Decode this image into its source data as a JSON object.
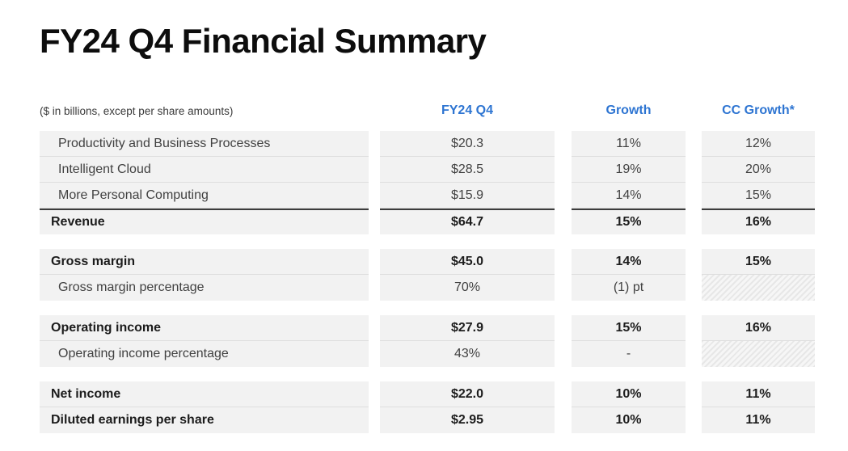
{
  "slide": {
    "title": "FY24 Q4 Financial Summary",
    "units_note": "($ in billions, except per share amounts)"
  },
  "table": {
    "column_headers": [
      "FY24 Q4",
      "Growth",
      "CC Growth*"
    ],
    "groups": [
      {
        "rows": [
          {
            "label": "Productivity and Business Processes",
            "cells": [
              {
                "text": "$20.3"
              },
              {
                "text": "11%"
              },
              {
                "text": "12%"
              }
            ]
          },
          {
            "label": "Intelligent Cloud",
            "cells": [
              {
                "text": "$28.5"
              },
              {
                "text": "19%"
              },
              {
                "text": "20%"
              }
            ]
          },
          {
            "label": "More Personal Computing",
            "cells": [
              {
                "text": "$15.9"
              },
              {
                "text": "14%"
              },
              {
                "text": "15%"
              }
            ]
          },
          {
            "label": "Revenue",
            "cells": [
              {
                "text": "$64.7"
              },
              {
                "text": "15%"
              },
              {
                "text": "16%"
              }
            ]
          }
        ]
      },
      {
        "rows": [
          {
            "label": "Gross margin",
            "cells": [
              {
                "text": "$45.0"
              },
              {
                "text": "14%"
              },
              {
                "text": "15%"
              }
            ]
          },
          {
            "label": "Gross margin percentage",
            "cells": [
              {
                "text": "70%"
              },
              {
                "text": "(1) pt"
              },
              {
                "hatch": true
              }
            ]
          }
        ]
      },
      {
        "rows": [
          {
            "label": "Operating income",
            "cells": [
              {
                "text": "$27.9"
              },
              {
                "text": "15%"
              },
              {
                "text": "16%"
              }
            ]
          },
          {
            "label": "Operating income percentage",
            "cells": [
              {
                "text": "43%"
              },
              {
                "text": "-"
              },
              {
                "hatch": true
              }
            ]
          }
        ]
      },
      {
        "rows": [
          {
            "label": "Net income",
            "cells": [
              {
                "text": "$22.0"
              },
              {
                "text": "10%"
              },
              {
                "text": "11%"
              }
            ]
          },
          {
            "label": "Diluted earnings per share",
            "cells": [
              {
                "text": "$2.95"
              },
              {
                "text": "10%"
              },
              {
                "text": "11%"
              }
            ]
          }
        ]
      }
    ]
  },
  "colors": {
    "header_blue": "#2E75D2",
    "row_background": "#F2F2F2",
    "row_divider": "#DEDEDE",
    "dark_divider": "#3C3C3C",
    "title_text": "#0D0D0D",
    "body_text": "#414141",
    "bold_text": "#1C1C1C"
  }
}
